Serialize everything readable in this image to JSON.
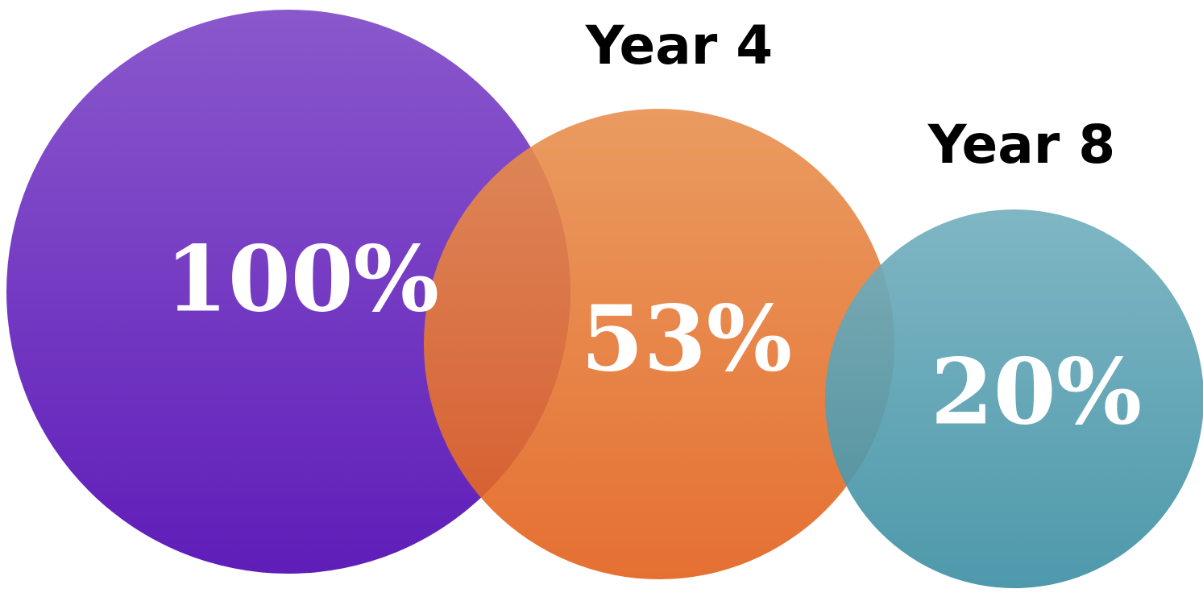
{
  "chart_data": {
    "type": "bubble",
    "title": "",
    "series": [
      {
        "label": "",
        "value_label": "100%",
        "value": 100,
        "color_top": "#8A58CC",
        "color_bottom": "#5F1DB9"
      },
      {
        "label": "Year 4",
        "value_label": "53%",
        "value": 53,
        "color_top": "#E8904F",
        "color_bottom": "#E2601B"
      },
      {
        "label": "Year 8",
        "value_label": "20%",
        "value": 20,
        "color_top": "#74B0BF",
        "color_bottom": "#3E90A4"
      }
    ]
  }
}
